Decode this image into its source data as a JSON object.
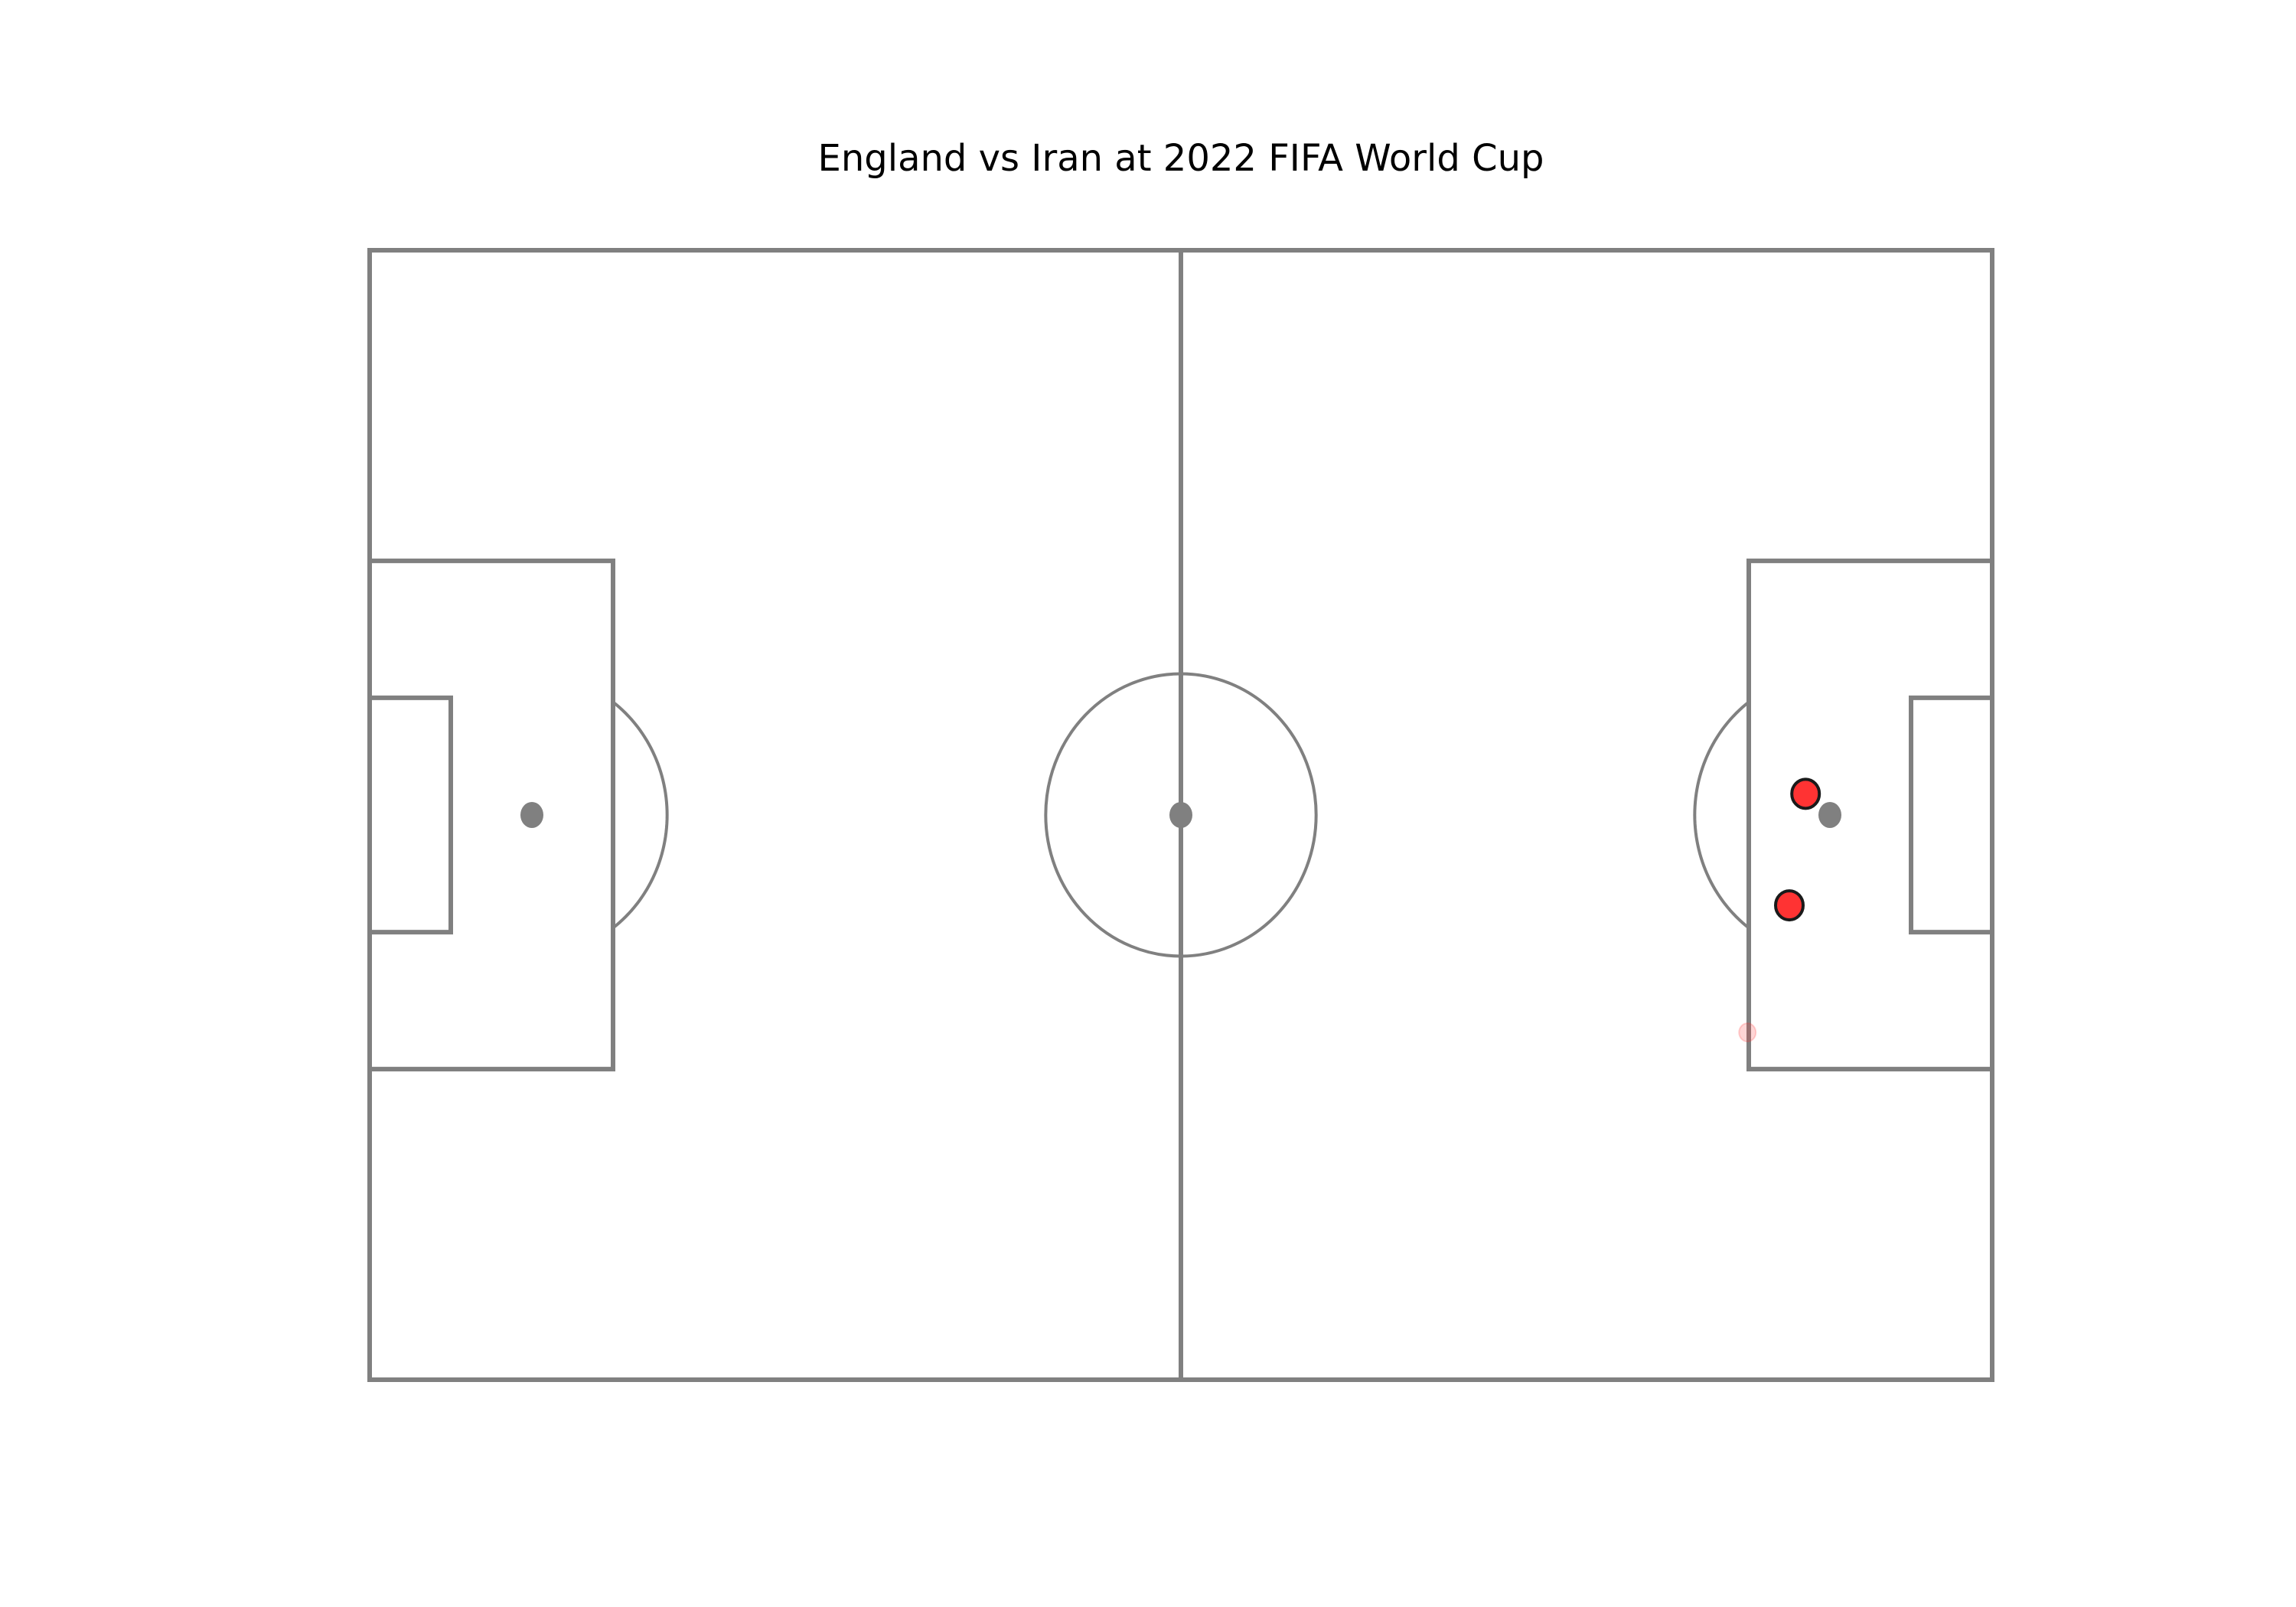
{
  "chart_data": {
    "type": "scatter",
    "title": "England vs Iran at 2022 FIFA World Cup",
    "xlabel": "",
    "ylabel": "",
    "xlim": [
      0,
      120
    ],
    "ylim": [
      0,
      80
    ],
    "grid": false,
    "legend": "none",
    "pitch": {
      "line_color": "#808080",
      "background": "#ffffff"
    },
    "series": [
      {
        "points": [
          {
            "x": 106.2,
            "y": 41.5,
            "alpha": 1.0,
            "size": "large",
            "color": "#ff3333",
            "edge_color": "#1a1a1a"
          },
          {
            "x": 105.0,
            "y": 33.6,
            "alpha": 1.0,
            "size": "large",
            "color": "#ff3333",
            "edge_color": "#1a1a1a"
          },
          {
            "x": 101.9,
            "y": 24.6,
            "alpha": 0.2,
            "size": "small",
            "color": "#ff3333",
            "edge_color": "#ff3333"
          }
        ]
      }
    ]
  }
}
